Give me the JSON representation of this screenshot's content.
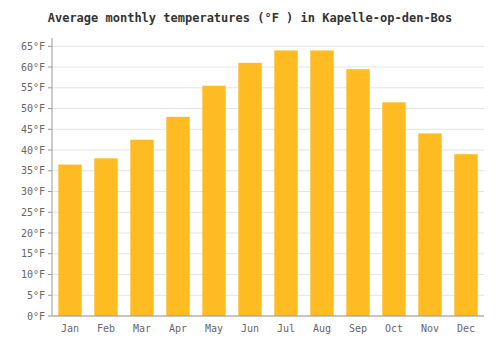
{
  "chart_data": {
    "type": "bar",
    "title": "Average monthly temperatures (°F ) in Kapelle-op-den-Bos",
    "categories": [
      "Jan",
      "Feb",
      "Mar",
      "Apr",
      "May",
      "Jun",
      "Jul",
      "Aug",
      "Sep",
      "Oct",
      "Nov",
      "Dec"
    ],
    "values": [
      36.5,
      38.0,
      42.5,
      48.0,
      55.5,
      61.0,
      64.0,
      64.0,
      59.5,
      51.5,
      44.0,
      39.0
    ],
    "color": "#FFBB22",
    "ylim": [
      0,
      67
    ],
    "yticks": [
      {
        "value": 0,
        "label": "0°F"
      },
      {
        "value": 5,
        "label": "5°F"
      },
      {
        "value": 10,
        "label": "10°F"
      },
      {
        "value": 15,
        "label": "15°F"
      },
      {
        "value": 20,
        "label": "20°F"
      },
      {
        "value": 25,
        "label": "25°F"
      },
      {
        "value": 30,
        "label": "30°F"
      },
      {
        "value": 35,
        "label": "35°F"
      },
      {
        "value": 40,
        "label": "40°F"
      },
      {
        "value": 45,
        "label": "45°F"
      },
      {
        "value": 50,
        "label": "50°F"
      },
      {
        "value": 55,
        "label": "55°F"
      },
      {
        "value": 60,
        "label": "60°F"
      },
      {
        "value": 65,
        "label": "65°F"
      }
    ],
    "grid": true
  }
}
